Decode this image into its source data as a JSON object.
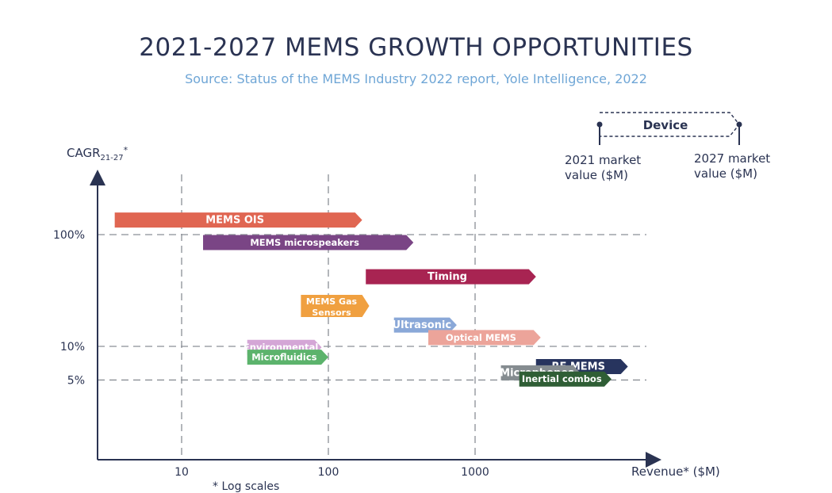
{
  "header": {
    "title": "2021-2027 MEMS GROWTH OPPORTUNITIES",
    "subtitle": "Source: Status of the MEMS Industry 2022 report, Yole Intelligence, 2022"
  },
  "legend": {
    "device_label": "Device",
    "start_label_line1": "2021 market",
    "start_label_line2": "value ($M)",
    "end_label_line1": "2027 market",
    "end_label_line2": "value ($M)"
  },
  "footnote": "* Log scales",
  "chart_data": {
    "type": "bar",
    "title": "2021-2027 MEMS GROWTH OPPORTUNITIES",
    "xlabel": "Revenue* ($M)",
    "ylabel": "CAGR",
    "ylabel_sub": "21-27",
    "ylabel_sup": "*",
    "x_scale": "log",
    "y_scale": "log",
    "xlim": [
      3,
      1000000
    ],
    "x_ticks": [
      {
        "value": 10,
        "label": "10"
      },
      {
        "value": 100,
        "label": "100"
      },
      {
        "value": 1000,
        "label": "1000"
      }
    ],
    "y_ticks": [
      {
        "value": 1.0,
        "label": "100%"
      },
      {
        "value": 0.1,
        "label": "10%"
      },
      {
        "value": 0.05,
        "label": "5%"
      }
    ],
    "grid": true,
    "series": [
      {
        "label": "MEMS OIS",
        "start": 3.5,
        "end": 170,
        "cagr": 1.35,
        "color": "#e06652",
        "lines": 1
      },
      {
        "label": "MEMS microspeakers",
        "start": 14,
        "end": 380,
        "cagr": 0.85,
        "color": "#7a4585",
        "lines": 1
      },
      {
        "label": "Timing",
        "start": 180,
        "end": 2600,
        "cagr": 0.42,
        "color": "#a82452",
        "lines": 1
      },
      {
        "label": "MEMS Gas Sensors",
        "label_lines": [
          "MEMS Gas",
          "Sensors"
        ],
        "start": 65,
        "end": 190,
        "cagr": 0.23,
        "color": "#f0a040",
        "lines": 2
      },
      {
        "label": "Ultrasonic",
        "start": 280,
        "end": 750,
        "cagr": 0.155,
        "color": "#8aa8d8",
        "lines": 1
      },
      {
        "label": "Optical MEMS",
        "start": 480,
        "end": 2800,
        "cagr": 0.12,
        "color": "#eca49a",
        "lines": 1
      },
      {
        "label": "Environmental",
        "start": 28,
        "end": 90,
        "cagr": 0.098,
        "color": "#d4a6d6",
        "lines": 1
      },
      {
        "label": "Microfluidics",
        "start": 28,
        "end": 100,
        "cagr": 0.08,
        "color": "#5cb36c",
        "lines": 1
      },
      {
        "label": "RF MEMS",
        "start": 2600,
        "end": 11000,
        "cagr": 0.066,
        "color": "#27345e",
        "lines": 1
      },
      {
        "label": "Microphones",
        "start": 1500,
        "end": 5200,
        "cagr": 0.058,
        "color": "#858c90",
        "lines": 1
      },
      {
        "label": "Inertial combos",
        "start": 2000,
        "end": 8500,
        "cagr": 0.051,
        "color": "#2f5e35",
        "lines": 1
      }
    ]
  }
}
